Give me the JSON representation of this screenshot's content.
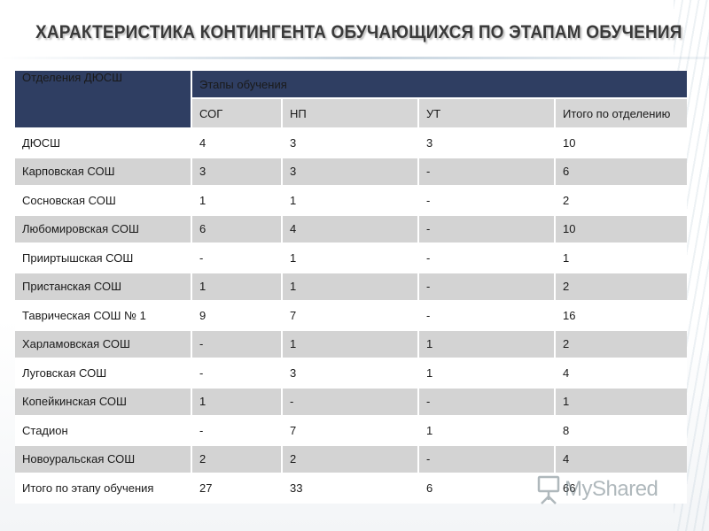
{
  "title": "ХАРАКТЕРИСТИКА КОНТИНГЕНТА ОБУЧАЮЩИХСЯ ПО ЭТАПАМ ОБУЧЕНИЯ",
  "table": {
    "header_dept": "Отделения ДЮСШ",
    "header_stages": "Этапы обучения",
    "subheaders": [
      "СОГ",
      "НП",
      "УТ",
      "Итого по отделению"
    ],
    "rows": [
      {
        "name": "ДЮСШ",
        "sog": "4",
        "np": "3",
        "ut": "3",
        "total": "10"
      },
      {
        "name": "Карповская СОШ",
        "sog": "3",
        "np": "3",
        "ut": "-",
        "total": "6"
      },
      {
        "name": "Сосновская СОШ",
        "sog": "1",
        "np": "1",
        "ut": "-",
        "total": "2"
      },
      {
        "name": "Любомировская СОШ",
        "sog": "6",
        "np": "4",
        "ut": "-",
        "total": "10"
      },
      {
        "name": "Прииртышская СОШ",
        "sog": "-",
        "np": "1",
        "ut": "-",
        "total": "1"
      },
      {
        "name": "Пристанская СОШ",
        "sog": "1",
        "np": "1",
        "ut": "-",
        "total": "2"
      },
      {
        "name": "Таврическая СОШ № 1",
        "sog": "9",
        "np": "7",
        "ut": "-",
        "total": "16"
      },
      {
        "name": "Харламовская СОШ",
        "sog": "-",
        "np": "1",
        "ut": "1",
        "total": "2"
      },
      {
        "name": "Луговская СОШ",
        "sog": "-",
        "np": "3",
        "ut": "1",
        "total": "4"
      },
      {
        "name": "Копейкинская СОШ",
        "sog": "1",
        "np": "-",
        "ut": "-",
        "total": "1"
      },
      {
        "name": "Стадион",
        "sog": "-",
        "np": "7",
        "ut": "1",
        "total": "8"
      },
      {
        "name": "Новоуральская СОШ",
        "sog": "2",
        "np": "2",
        "ut": "-",
        "total": "4"
      },
      {
        "name": "Итого по этапу обучения",
        "sog": "27",
        "np": "33",
        "ut": "6",
        "total": "66"
      }
    ]
  },
  "watermark": "MyShared",
  "colors": {
    "header_bg": "#2f3e62",
    "row_alt": "#d3d3d3",
    "subheader_bg": "#d6d6d6"
  }
}
